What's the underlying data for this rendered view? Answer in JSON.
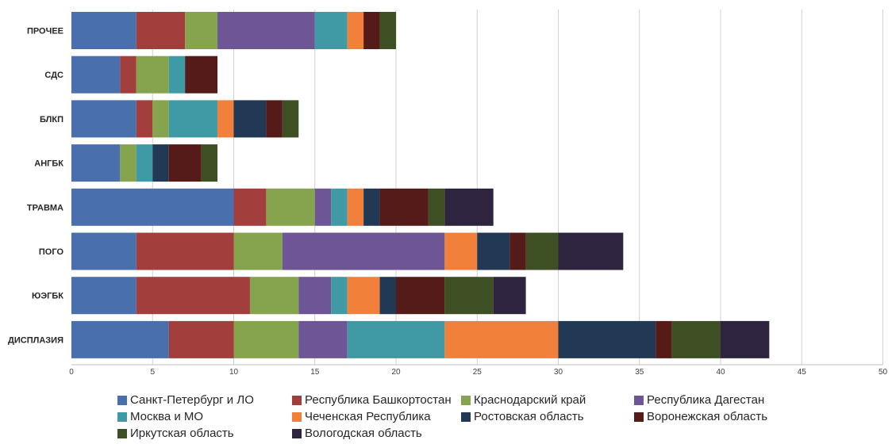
{
  "chart_data": {
    "type": "bar",
    "orientation": "horizontal",
    "stacked": true,
    "categories": [
      "ПРОЧЕЕ",
      "СДС",
      "БЛКП",
      "АНГБК",
      "ТРАВМА",
      "ПОГО",
      "ЮЭГБК",
      "ДИСПЛАЗИЯ"
    ],
    "series": [
      {
        "name": "Санкт-Петербург и ЛО",
        "color": "#4a6fad",
        "values": [
          4,
          3,
          4,
          3,
          10,
          4,
          4,
          6
        ]
      },
      {
        "name": "Республика Башкортостан",
        "color": "#a23f3c",
        "values": [
          3,
          1,
          1,
          0,
          2,
          6,
          7,
          4
        ]
      },
      {
        "name": "Краснодарский край",
        "color": "#86a34e",
        "values": [
          2,
          2,
          1,
          1,
          3,
          3,
          3,
          4
        ]
      },
      {
        "name": "Республика Дагестан",
        "color": "#6e5596",
        "values": [
          6,
          0,
          0,
          0,
          1,
          10,
          2,
          3
        ]
      },
      {
        "name": "Москва и МО",
        "color": "#3f9aa5",
        "values": [
          2,
          1,
          3,
          1,
          1,
          0,
          1,
          6
        ]
      },
      {
        "name": "Чеченская Республика",
        "color": "#f0803a",
        "values": [
          1,
          0,
          1,
          0,
          1,
          2,
          2,
          7
        ]
      },
      {
        "name": "Ростовская область",
        "color": "#223955",
        "values": [
          0,
          0,
          2,
          1,
          1,
          2,
          1,
          6
        ]
      },
      {
        "name": "Воронежская область",
        "color": "#541b18",
        "values": [
          1,
          2,
          1,
          2,
          3,
          1,
          3,
          1
        ]
      },
      {
        "name": "Иркутская область",
        "color": "#3e4f24",
        "values": [
          1,
          0,
          1,
          1,
          1,
          2,
          3,
          3
        ]
      },
      {
        "name": "Вологодская область",
        "color": "#2e2440",
        "values": [
          0,
          0,
          0,
          0,
          3,
          4,
          2,
          3
        ]
      }
    ],
    "xlim": [
      0,
      50
    ],
    "xticks": [
      "0",
      "5",
      "10",
      "15",
      "20",
      "25",
      "30",
      "35",
      "40",
      "45",
      "50"
    ],
    "grid": "vertical",
    "legend_position": "bottom"
  }
}
